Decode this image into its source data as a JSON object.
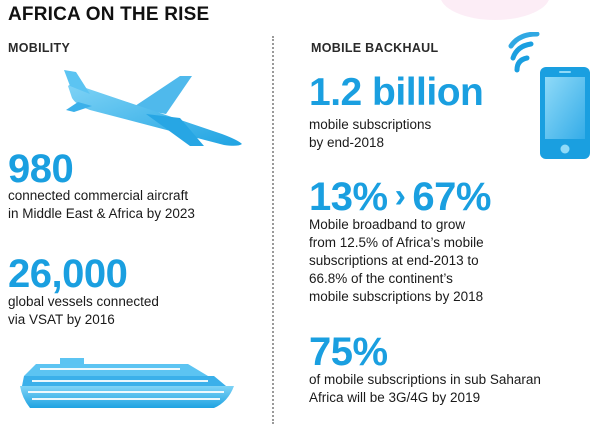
{
  "title": "AFRICA ON THE RISE",
  "mobility": {
    "heading": "MOBILITY",
    "stat1": {
      "value": "980",
      "line1": "connected commercial aircraft",
      "line2": "in Middle East & Africa by 2023"
    },
    "stat2": {
      "value": "26,000",
      "line1": "global vessels connected",
      "line2": "via VSAT by 2016"
    }
  },
  "backhaul": {
    "heading": "MOBILE BACKHAUL",
    "stat1": {
      "value": "1.2 billion",
      "line1": "mobile subscriptions",
      "line2": "by end-2018"
    },
    "stat2": {
      "value_from": "13%",
      "arrow": "›",
      "value_to": "67%",
      "line1": "Mobile broadband to grow",
      "line2": "from 12.5% of Africa’s mobile",
      "line3": "subscriptions at end-2013 to",
      "line4": "66.8% of the continent’s",
      "line5": "mobile subscriptions by 2018"
    },
    "stat3": {
      "value": "75%",
      "line1": "of mobile subscriptions in sub Saharan",
      "line2": "Africa will be 3G/4G by 2019"
    }
  },
  "colors": {
    "accent": "#1a9fe0",
    "accent_light": "#5cc4f2",
    "accent_dark": "#0b78b8"
  },
  "icons": [
    "airplane-icon",
    "cruise-ship-icon",
    "smartphone-icon",
    "wifi-signal-icon"
  ]
}
